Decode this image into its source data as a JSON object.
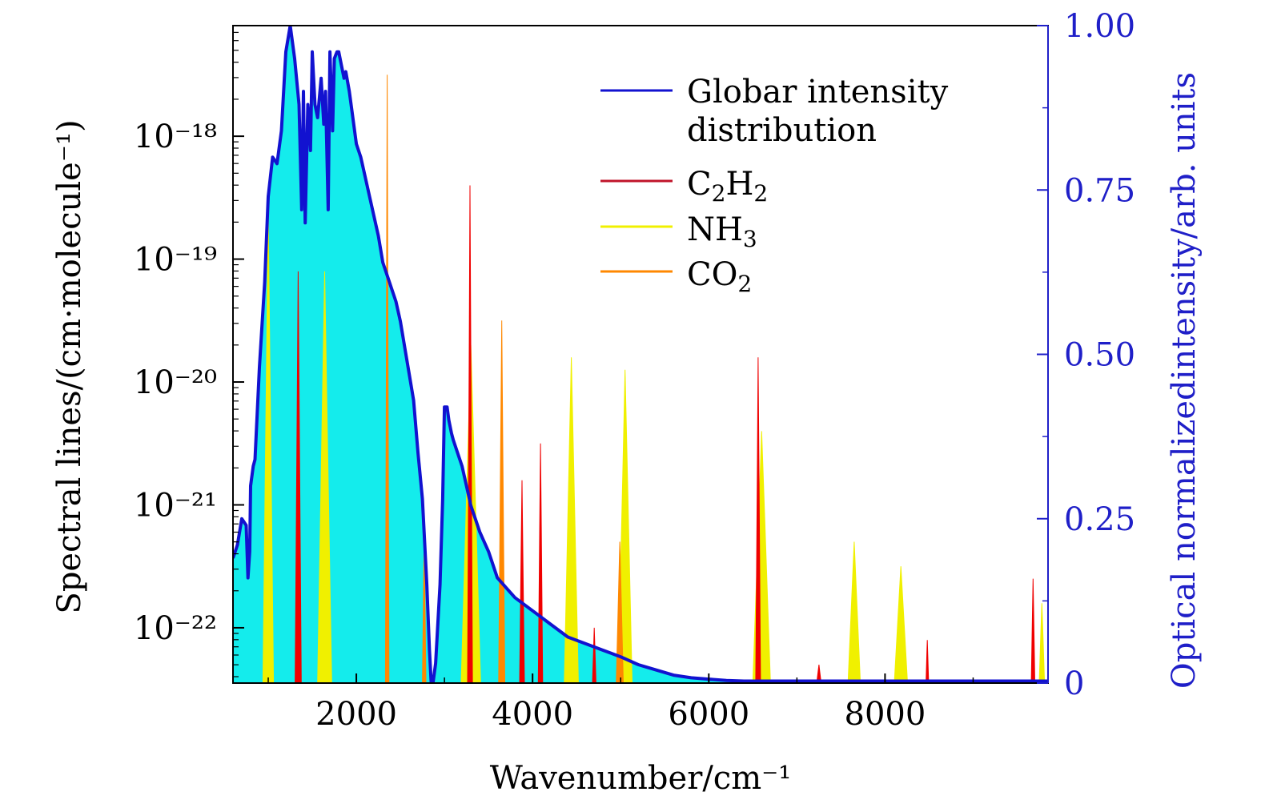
{
  "chart_data": {
    "type": "area",
    "xlabel": "Wavenumber/cm⁻¹",
    "ylabel_left": "Spectral lines/(cm·molecule⁻¹)",
    "ylabel_right": "Optical normalizedintensity/arb. units",
    "xlim": [
      600,
      9850
    ],
    "ylim_left_log10": [
      -22.45,
      -17.1
    ],
    "ylim_right": [
      0,
      1.0
    ],
    "y_left_scale": "log",
    "x_ticks": [
      2000,
      4000,
      6000,
      8000
    ],
    "x_tick_labels": [
      "2000",
      "4000",
      "6000",
      "8000"
    ],
    "y_left_ticks_log10": [
      -22,
      -21,
      -20,
      -19,
      -18
    ],
    "y_left_tick_labels": [
      "10⁻²²",
      "10⁻²¹",
      "10⁻²⁰",
      "10⁻¹⁹",
      "10⁻¹⁸"
    ],
    "y_right_ticks": [
      0,
      0.25,
      0.5,
      0.75,
      1.0
    ],
    "y_right_tick_labels": [
      "0",
      "0.25",
      "0.50",
      "0.75",
      "1.00"
    ],
    "legend_position": "top-right",
    "colors": {
      "globar": "#1212d0",
      "globar_fill": "#14ecec",
      "C2H2": "#f00000",
      "NH3": "#f0f000",
      "CO2": "#ff8800",
      "right_axis": "#1f1fc8"
    },
    "series": [
      {
        "key": "globar",
        "name": "Globar intensity distribution",
        "name_lines": [
          "Globar intensity",
          "distribution"
        ],
        "axis": "right",
        "x": [
          600,
          650,
          700,
          750,
          770,
          790,
          800,
          830,
          850,
          900,
          960,
          1000,
          1050,
          1100,
          1150,
          1200,
          1250,
          1300,
          1350,
          1380,
          1400,
          1420,
          1450,
          1480,
          1500,
          1530,
          1560,
          1600,
          1630,
          1650,
          1680,
          1700,
          1730,
          1750,
          1780,
          1800,
          1830,
          1860,
          1880,
          1920,
          1960,
          2000,
          2050,
          2100,
          2150,
          2200,
          2250,
          2300,
          2350,
          2400,
          2450,
          2500,
          2550,
          2600,
          2650,
          2700,
          2750,
          2800,
          2830,
          2850,
          2870,
          2900,
          2950,
          2980,
          3000,
          3030,
          3050,
          3080,
          3100,
          3150,
          3200,
          3250,
          3300,
          3400,
          3500,
          3600,
          3800,
          4000,
          4200,
          4400,
          4600,
          4800,
          5000,
          5200,
          5400,
          5600,
          5800,
          6000,
          6200,
          6400,
          6800,
          7200,
          7600,
          8000,
          8400,
          8800,
          9200,
          9600,
          9850
        ],
        "y": [
          0.19,
          0.21,
          0.25,
          0.24,
          0.16,
          0.2,
          0.3,
          0.33,
          0.34,
          0.48,
          0.61,
          0.74,
          0.8,
          0.79,
          0.84,
          0.96,
          1.0,
          0.95,
          0.88,
          0.72,
          0.9,
          0.7,
          0.88,
          0.81,
          0.96,
          0.88,
          0.86,
          0.92,
          0.85,
          0.9,
          0.72,
          0.96,
          0.84,
          0.95,
          0.96,
          0.96,
          0.94,
          0.92,
          0.93,
          0.9,
          0.86,
          0.82,
          0.8,
          0.77,
          0.74,
          0.71,
          0.68,
          0.64,
          0.62,
          0.6,
          0.58,
          0.55,
          0.51,
          0.47,
          0.43,
          0.35,
          0.28,
          0.15,
          0.05,
          0.0,
          0.0,
          0.03,
          0.15,
          0.28,
          0.42,
          0.42,
          0.4,
          0.38,
          0.37,
          0.35,
          0.33,
          0.3,
          0.27,
          0.23,
          0.2,
          0.16,
          0.13,
          0.11,
          0.09,
          0.07,
          0.06,
          0.05,
          0.04,
          0.028,
          0.02,
          0.012,
          0.008,
          0.006,
          0.004,
          0.003,
          0.003,
          0.003,
          0.003,
          0.003,
          0.003,
          0.003,
          0.003,
          0.003,
          0.003
        ]
      },
      {
        "key": "C2H2",
        "name": "C₂H₂",
        "name_base": "C",
        "name_sub1": "2",
        "name_mid": "H",
        "name_sub2": "2",
        "axis": "left",
        "bands": [
          {
            "center": 1340,
            "width": 70,
            "peak_log10": -19.1
          },
          {
            "center": 3290,
            "width": 55,
            "peak_log10": -18.4
          },
          {
            "center": 3880,
            "width": 55,
            "peak_log10": -20.8
          },
          {
            "center": 4090,
            "width": 50,
            "peak_log10": -20.5
          },
          {
            "center": 4700,
            "width": 40,
            "peak_log10": -22.0
          },
          {
            "center": 6560,
            "width": 55,
            "peak_log10": -19.8
          },
          {
            "center": 7250,
            "width": 50,
            "peak_log10": -22.3
          },
          {
            "center": 8480,
            "width": 30,
            "peak_log10": -22.1
          },
          {
            "center": 9680,
            "width": 40,
            "peak_log10": -21.6
          }
        ]
      },
      {
        "key": "NH3",
        "name": "NH₃",
        "name_base": "NH",
        "name_sub1": "3",
        "axis": "left",
        "bands": [
          {
            "center": 1000,
            "width": 120,
            "peak_log10": -18.6
          },
          {
            "center": 1640,
            "width": 160,
            "peak_log10": -19.1
          },
          {
            "center": 3300,
            "width": 220,
            "peak_log10": -19.7
          },
          {
            "center": 4440,
            "width": 160,
            "peak_log10": -19.8
          },
          {
            "center": 5050,
            "width": 160,
            "peak_log10": -19.9
          },
          {
            "center": 6600,
            "width": 200,
            "peak_log10": -20.4
          },
          {
            "center": 7650,
            "width": 140,
            "peak_log10": -21.3
          },
          {
            "center": 8180,
            "width": 150,
            "peak_log10": -21.5
          },
          {
            "center": 9780,
            "width": 60,
            "peak_log10": -21.8
          }
        ]
      },
      {
        "key": "CO2",
        "name": "CO₂",
        "name_base": "CO",
        "name_sub1": "2",
        "axis": "left",
        "bands": [
          {
            "center": 2350,
            "width": 40,
            "peak_log10": -17.5
          },
          {
            "center": 2770,
            "width": 40,
            "peak_log10": -21.3
          },
          {
            "center": 3650,
            "width": 70,
            "peak_log10": -19.5
          },
          {
            "center": 4990,
            "width": 80,
            "peak_log10": -21.3
          }
        ]
      }
    ]
  }
}
